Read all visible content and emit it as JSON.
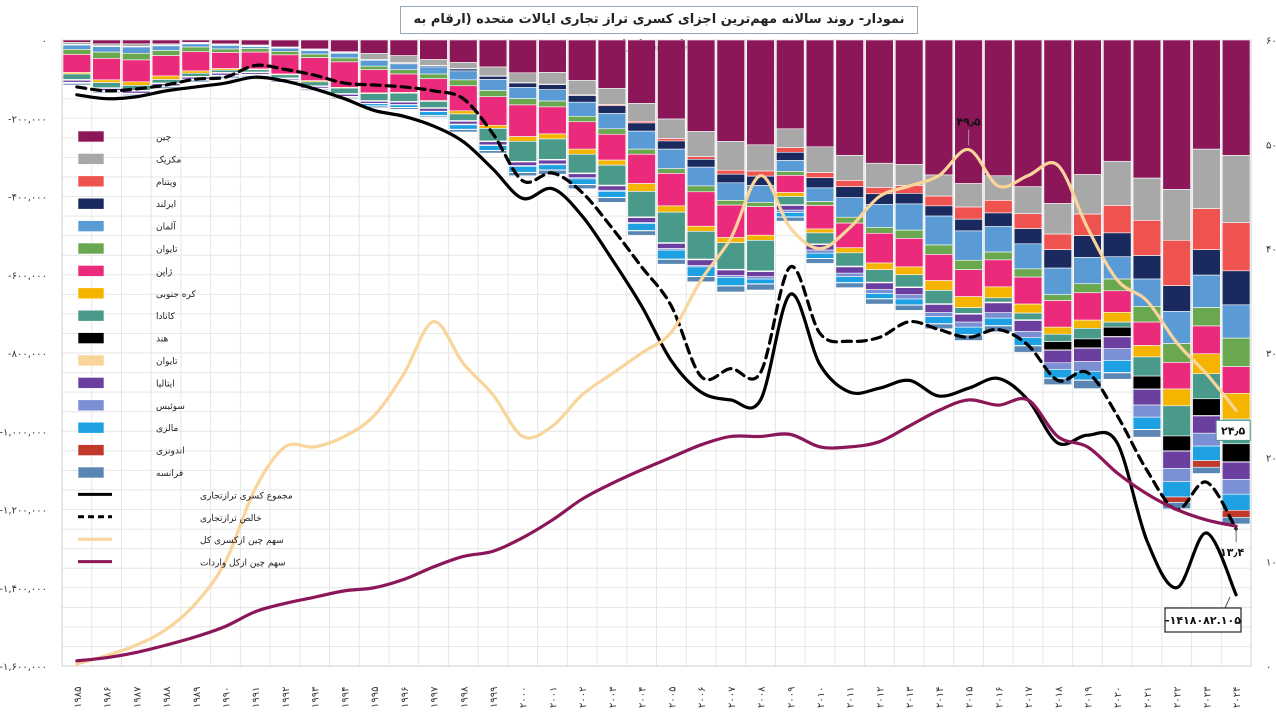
{
  "title": "نمودار- روند سالانه مهم‌ترین اجزای کسری تراز تجاری ایالات متحده (ارقام به میلیون دلار)",
  "chart_data": {
    "type": "bar",
    "stacked": true,
    "grid": true,
    "legend_position": "left",
    "years": [
      "۱۹۸۵",
      "۱۹۸۶",
      "۱۹۸۷",
      "۱۹۸۸",
      "۱۹۸۹",
      "۱۹۹۰",
      "۱۹۹۱",
      "۱۹۹۲",
      "۱۹۹۳",
      "۱۹۹۴",
      "۱۹۹۵",
      "۱۹۹۶",
      "۱۹۹۷",
      "۱۹۹۸",
      "۱۹۹۹",
      "۲۰۰۰",
      "۲۰۰۱",
      "۲۰۰۲",
      "۲۰۰۳",
      "۲۰۰۴",
      "۲۰۰۵",
      "۲۰۰۶",
      "۲۰۰۷",
      "۲۰۰۸",
      "۲۰۰۹",
      "۲۰۱۰",
      "۲۰۱۱",
      "۲۰۱۲",
      "۲۰۱۳",
      "۲۰۱۴",
      "۲۰۱۵",
      "۲۰۱۶",
      "۲۰۱۷",
      "۲۰۱۸",
      "۲۰۱۹",
      "۲۰۲۰",
      "۲۰۲۱",
      "۲۰۲۲",
      "۲۰۲۳",
      "۲۰۲۴"
    ],
    "left_axis": {
      "ylim": [
        -1600000,
        0
      ],
      "ticks": [
        0,
        -200000,
        -400000,
        -600000,
        -800000,
        -1000000,
        -1200000,
        -1400000,
        -1600000
      ],
      "tick_labels": [
        "۰",
        "-۲۰۰,۰۰۰",
        "-۴۰۰,۰۰۰",
        "-۶۰۰,۰۰۰",
        "-۸۰۰,۰۰۰",
        "-۱,۰۰۰,۰۰۰",
        "-۱,۲۰۰,۰۰۰",
        "-۱,۴۰۰,۰۰۰",
        "-۱,۶۰۰,۰۰۰"
      ]
    },
    "right_axis": {
      "ylim": [
        0,
        60
      ],
      "ticks": [
        60,
        50,
        40,
        30,
        20,
        10,
        0
      ],
      "tick_labels": [
        "۶۰",
        "۵۰",
        "۴۰",
        "۳۰",
        "۲۰",
        "۱۰",
        "۰"
      ]
    },
    "bar_series": [
      {
        "name": "چین",
        "color": "#8b1658",
        "values": [
          -6000,
          -10000,
          -10000,
          -10000,
          -6000,
          -10000,
          -13000,
          -18000,
          -23000,
          -30000,
          -34000,
          -40000,
          -50000,
          -57000,
          -69000,
          -84000,
          -83000,
          -103000,
          -124000,
          -162000,
          -202000,
          -234000,
          -259000,
          -268000,
          -227000,
          -273000,
          -295000,
          -315000,
          -318000,
          -345000,
          -367000,
          -347000,
          -375000,
          -418000,
          -344000,
          -310000,
          -353000,
          -382000,
          -279000,
          -295000
        ]
      },
      {
        "name": "مکزیک",
        "color": "#a8a8a8",
        "values": [
          -5000,
          -5000,
          -6000,
          -3000,
          -2000,
          -2000,
          -2000,
          -1000,
          -2000,
          -2000,
          -16000,
          -18000,
          -15000,
          -16000,
          -23000,
          -25000,
          -30000,
          -37000,
          -41000,
          -46000,
          -50000,
          -64000,
          -74000,
          -67000,
          -48000,
          -66000,
          -64000,
          -62000,
          -54000,
          -54000,
          -60000,
          -63000,
          -69000,
          -78000,
          -101000,
          -113000,
          -108000,
          -130000,
          -152000,
          -172000
        ]
      },
      {
        "name": "ویتنام",
        "color": "#ef5350",
        "values": [
          -1000,
          -1000,
          -1000,
          -1000,
          -1000,
          -1000,
          -1000,
          -1000,
          -1000,
          -1000,
          -1000,
          -1000,
          -1000,
          -1000,
          -1000,
          -1000,
          -1000,
          -2000,
          -3000,
          -4000,
          -6000,
          -7000,
          -10000,
          -13000,
          -12000,
          -13000,
          -16000,
          -16000,
          -20000,
          -25000,
          -31000,
          -32000,
          -38000,
          -40000,
          -55000,
          -70000,
          -90000,
          -116000,
          -105000,
          -123000
        ]
      },
      {
        "name": "ایرلند",
        "color": "#1b2a5e",
        "values": [
          -1000,
          -1000,
          -1000,
          -1000,
          -1000,
          -1000,
          -1000,
          -1000,
          -1000,
          -1000,
          -1000,
          -2000,
          -3000,
          -5000,
          -8000,
          -11000,
          -13000,
          -17000,
          -20000,
          -21000,
          -21000,
          -20000,
          -22000,
          -24000,
          -21000,
          -26000,
          -28000,
          -27000,
          -27000,
          -26000,
          -30000,
          -35000,
          -39000,
          -47000,
          -56000,
          -61000,
          -60000,
          -66000,
          -65000,
          -87000
        ]
      },
      {
        "name": "آلمان",
        "color": "#5b9bd5",
        "values": [
          -11000,
          -14000,
          -16000,
          -12000,
          -8000,
          -9000,
          -5000,
          -8000,
          -9000,
          -12000,
          -15000,
          -15000,
          -18000,
          -23000,
          -28000,
          -29000,
          -29000,
          -36000,
          -39000,
          -46000,
          -50000,
          -48000,
          -45000,
          -43000,
          -28000,
          -35000,
          -50000,
          -59000,
          -67000,
          -74000,
          -75000,
          -65000,
          -64000,
          -68000,
          -67000,
          -57000,
          -70000,
          -82000,
          -83000,
          -85000
        ]
      },
      {
        "name": "تایوان",
        "color": "#6aa84f",
        "values": [
          -13000,
          -16000,
          -17000,
          -13000,
          -12000,
          -9000,
          -9000,
          -9000,
          -9000,
          -10000,
          -9000,
          -11000,
          -12000,
          -15000,
          -16000,
          -16000,
          -15000,
          -14000,
          -14000,
          -13000,
          -12000,
          -15000,
          -12000,
          -11000,
          -10000,
          -10000,
          -15000,
          -15000,
          -21000,
          -24000,
          -24000,
          -20000,
          -21000,
          -15000,
          -23000,
          -30000,
          -40000,
          -48000,
          -47000,
          -73000
        ]
      },
      {
        "name": "ژاپن",
        "color": "#ec2a7b",
        "values": [
          -46000,
          -55000,
          -56000,
          -52000,
          -49000,
          -41000,
          -43000,
          -49000,
          -59000,
          -65000,
          -59000,
          -47000,
          -56000,
          -64000,
          -73000,
          -81000,
          -69000,
          -70000,
          -66000,
          -75000,
          -83000,
          -88000,
          -83000,
          -73000,
          -44000,
          -60000,
          -63000,
          -76000,
          -73000,
          -67000,
          -69000,
          -69000,
          -69000,
          -68000,
          -70000,
          -55000,
          -60000,
          -68000,
          -71000,
          -68000
        ]
      },
      {
        "name": "کره جنوبی",
        "color": "#f4b400",
        "values": [
          -4000,
          -7000,
          -9000,
          -9000,
          -6000,
          -4000,
          -2000,
          -2000,
          -3000,
          -2000,
          -2000,
          -2000,
          -2000,
          -8000,
          -8000,
          -12000,
          -13000,
          -13000,
          -13000,
          -20000,
          -16000,
          -13000,
          -13000,
          -13000,
          -10000,
          -10000,
          -13000,
          -17000,
          -20000,
          -25000,
          -28000,
          -28000,
          -23000,
          -18000,
          -21000,
          -25000,
          -29000,
          -43000,
          -51000,
          -66000
        ]
      },
      {
        "name": "کانادا",
        "color": "#4a9a8c",
        "values": [
          -14000,
          -13000,
          -13000,
          -9000,
          -8000,
          -6000,
          -6000,
          -8000,
          -10000,
          -14000,
          -18000,
          -21000,
          -16000,
          -17000,
          -32000,
          -51000,
          -52000,
          -48000,
          -51000,
          -65000,
          -78000,
          -71000,
          -68000,
          -78000,
          -21000,
          -28000,
          -34000,
          -32000,
          -31000,
          -34000,
          -15000,
          -11000,
          -17000,
          -19000,
          -27000,
          -13000,
          -49000,
          -77000,
          -64000,
          -63000
        ]
      },
      {
        "name": "هند",
        "color": "#000000",
        "values": [
          -1000,
          -1000,
          -1000,
          -1000,
          -1000,
          -1000,
          -1000,
          -1000,
          -1000,
          -1000,
          -1000,
          -1000,
          -1000,
          -1000,
          -1000,
          -1000,
          -1000,
          -1000,
          -1000,
          -1000,
          -1000,
          -1000,
          -1000,
          -1000,
          -1000,
          -1000,
          -1000,
          -1000,
          -1000,
          -1000,
          -1000,
          -1000,
          -1000,
          -21000,
          -23000,
          -24000,
          -33000,
          -38000,
          -43000,
          -46000
        ]
      },
      {
        "name": "تایوان",
        "color": "#f9d49b",
        "values": [
          -1000,
          -1000,
          -1000,
          -1000,
          -1000,
          -1000,
          -1000,
          -1000,
          -1000,
          -1000,
          -1000,
          -1000,
          -1000,
          -1000,
          -1000,
          -1000,
          -1000,
          -1000,
          -1000,
          -1000,
          -1000,
          -1000,
          -1000,
          -1000,
          -1000,
          -1000,
          -1000,
          -1000,
          -1000,
          -1000,
          -1000,
          -1000,
          -1000,
          -1000,
          -1000,
          -1000,
          -1000,
          -1000,
          -1000,
          -1000
        ]
      },
      {
        "name": "ایتالیا",
        "color": "#6b3fa0",
        "values": [
          -5000,
          -5000,
          -5000,
          -5000,
          -5000,
          -5000,
          -4000,
          -3000,
          -4000,
          -5000,
          -5000,
          -6000,
          -7000,
          -7000,
          -8000,
          -9000,
          -10000,
          -10000,
          -11000,
          -12000,
          -13000,
          -14000,
          -14000,
          -13000,
          -12000,
          -14000,
          -16000,
          -17000,
          -18000,
          -20000,
          -20000,
          -25000,
          -28000,
          -32000,
          -34000,
          -30000,
          -40000,
          -44000,
          -44000,
          -44000
        ]
      },
      {
        "name": "سوئیس",
        "color": "#7b8fd4",
        "values": [
          -1000,
          -1000,
          -1000,
          -1000,
          -1000,
          -1000,
          -1000,
          -1000,
          -1000,
          -1000,
          -1000,
          -1000,
          -1000,
          -2000,
          -2000,
          -2000,
          -2000,
          -3000,
          -3000,
          -3000,
          -4000,
          -4000,
          -5000,
          -6000,
          -6000,
          -8000,
          -9000,
          -10000,
          -11000,
          -11000,
          -13000,
          -14000,
          -16000,
          -17000,
          -25000,
          -30000,
          -31000,
          -34000,
          -33000,
          -38000
        ]
      },
      {
        "name": "مالزی",
        "color": "#1da1e2",
        "values": [
          -1000,
          -1000,
          -1000,
          -1000,
          -1000,
          -1000,
          -1000,
          -1000,
          -1000,
          -1000,
          -5000,
          -6000,
          -10000,
          -11000,
          -12000,
          -15000,
          -13000,
          -14000,
          -15000,
          -18000,
          -23000,
          -24000,
          -21000,
          -12000,
          -11000,
          -13000,
          -15000,
          -13000,
          -15000,
          -18000,
          -19000,
          -19000,
          -20000,
          -22000,
          -22000,
          -31000,
          -31000,
          -39000,
          -37000,
          -41000
        ]
      },
      {
        "name": "اندونزی",
        "color": "#c0392b",
        "values": [
          -1000,
          -1000,
          -1000,
          -1000,
          -1000,
          -1000,
          -1000,
          -1000,
          -1000,
          -1000,
          -1000,
          -1000,
          -1000,
          -1000,
          -1000,
          -1000,
          -1000,
          -1000,
          -1000,
          -1000,
          -1000,
          -1000,
          -1000,
          -1000,
          -1000,
          -1000,
          -1000,
          -1000,
          -1000,
          -1000,
          -1000,
          -1000,
          -1000,
          -1000,
          -1000,
          -1000,
          -1000,
          -14000,
          -17000,
          -18000
        ]
      },
      {
        "name": "فرانسه",
        "color": "#5a86b4",
        "values": [
          -4000,
          -3000,
          -3000,
          -4000,
          -4000,
          -4000,
          -3000,
          -3000,
          -3000,
          -3000,
          -4000,
          -4000,
          -3000,
          -6000,
          -6000,
          -8000,
          -10000,
          -10000,
          -12000,
          -11000,
          -12000,
          -13000,
          -15000,
          -15000,
          -10000,
          -12000,
          -12000,
          -13000,
          -13000,
          -12000,
          -14000,
          -15000,
          -16000,
          -16000,
          -21000,
          -16000,
          -19000,
          -16000,
          -16000,
          -17000
        ]
      }
    ],
    "line_series": [
      {
        "name": "مجموع کسری ترازتجاری",
        "color": "#000000",
        "style": "solid",
        "axis": "left",
        "values": [
          -140000,
          -150000,
          -145000,
          -130000,
          -120000,
          -110000,
          -95000,
          -105000,
          -125000,
          -150000,
          -180000,
          -195000,
          -220000,
          -260000,
          -330000,
          -405000,
          -380000,
          -450000,
          -560000,
          -680000,
          -820000,
          -900000,
          -920000,
          -920000,
          -650000,
          -830000,
          -900000,
          -890000,
          -870000,
          -910000,
          -890000,
          -865000,
          -920000,
          -1030000,
          -1010000,
          -1030000,
          -1280000,
          -1400000,
          -1260000,
          -1418082
        ]
      },
      {
        "name": "خالص ترازتجاری",
        "color": "#000000",
        "style": "dashed",
        "axis": "left",
        "values": [
          -120000,
          -130000,
          -125000,
          -115000,
          -100000,
          -95000,
          -65000,
          -75000,
          -90000,
          -110000,
          -115000,
          -120000,
          -130000,
          -150000,
          -240000,
          -360000,
          -340000,
          -390000,
          -480000,
          -580000,
          -680000,
          -860000,
          -840000,
          -850000,
          -580000,
          -750000,
          -770000,
          -760000,
          -720000,
          -740000,
          -760000,
          -740000,
          -780000,
          -870000,
          -850000,
          -960000,
          -1100000,
          -1200000,
          -1130000,
          -1250000
        ]
      },
      {
        "name": "سهم چین ازکسری کل",
        "color": "#f9d49b",
        "style": "solid",
        "axis": "right",
        "values": [
          0.2,
          1,
          2,
          3.5,
          6,
          10,
          17,
          21,
          21,
          22,
          24,
          28,
          33,
          29,
          26,
          22,
          23,
          26,
          28,
          30,
          32,
          37,
          41,
          47,
          42,
          40,
          42,
          45,
          46,
          47,
          49.5,
          46,
          47,
          48,
          42,
          37,
          35,
          31,
          28,
          24.5
        ]
      },
      {
        "name": "سهم چین ازکل واردات",
        "color": "#8b1658",
        "style": "solid",
        "axis": "right",
        "values": [
          0.5,
          0.8,
          1.3,
          2,
          2.8,
          3.8,
          5.2,
          6,
          6.6,
          7.2,
          7.5,
          8.3,
          9.5,
          10.5,
          11,
          12.3,
          14,
          16,
          17.5,
          18.8,
          20,
          21.2,
          22,
          22,
          22.2,
          21,
          21,
          21.5,
          23,
          24.5,
          25.5,
          25,
          25.5,
          22,
          21,
          18.5,
          16.5,
          15,
          14,
          13.4
        ]
      }
    ],
    "annotations": [
      {
        "text": "۴۹٫۵"
      },
      {
        "text": "۲۴٫۵"
      },
      {
        "text": "۱۳٫۴"
      },
      {
        "text": "-۱۴۱۸۰۸۲.۱۰۵"
      }
    ]
  }
}
